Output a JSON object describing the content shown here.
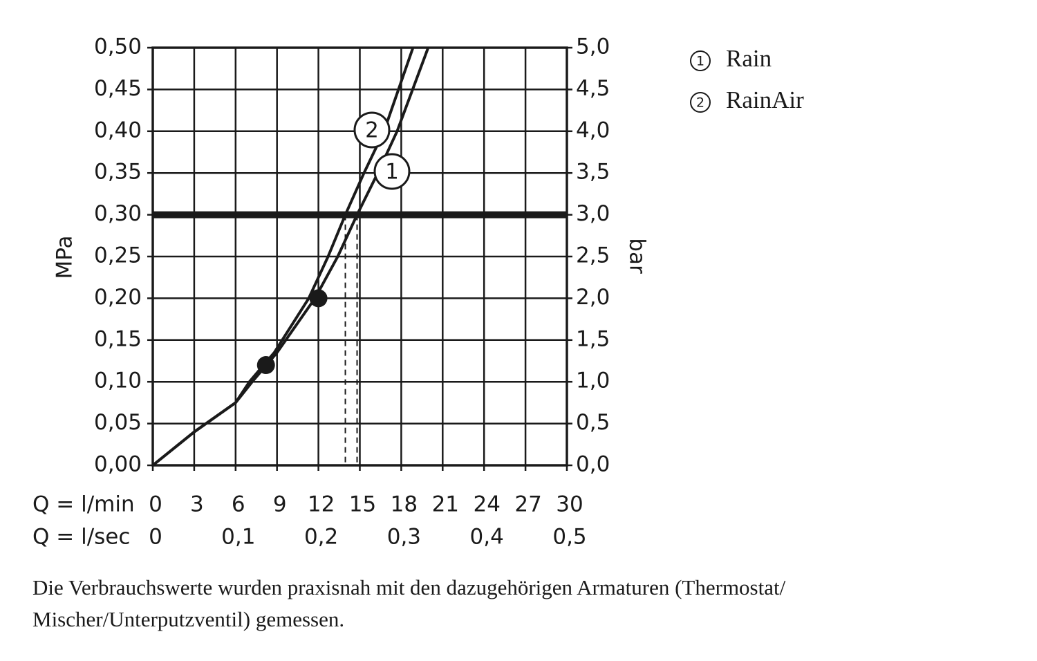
{
  "chart_data": {
    "type": "line",
    "y_label": "MPa",
    "y2_label": "bar",
    "x_label": "Q = l/min",
    "x2_label": "Q = l/sec",
    "xlim": [
      0,
      30
    ],
    "xticks": [
      0,
      3,
      6,
      9,
      12,
      15,
      18,
      21,
      24,
      27,
      30
    ],
    "x2lim": [
      0,
      0.5
    ],
    "x2ticks": [
      0,
      {
        "value": 0.1,
        "label": "0,1"
      },
      {
        "value": 0.2,
        "label": "0,2"
      },
      {
        "value": 0.3,
        "label": "0,3"
      },
      {
        "value": 0.4,
        "label": "0,4"
      },
      {
        "value": 0.5,
        "label": "0,5"
      }
    ],
    "ylim": [
      0,
      0.5
    ],
    "yticks": [
      {
        "value": 0,
        "label": "0,00"
      },
      {
        "value": 0.05,
        "label": "0,05"
      },
      {
        "value": 0.1,
        "label": "0,10"
      },
      {
        "value": 0.15,
        "label": "0,15"
      },
      {
        "value": 0.2,
        "label": "0,20"
      },
      {
        "value": 0.25,
        "label": "0,25"
      },
      {
        "value": 0.3,
        "label": "0,30"
      },
      {
        "value": 0.35,
        "label": "0,35"
      },
      {
        "value": 0.4,
        "label": "0,40"
      },
      {
        "value": 0.45,
        "label": "0,45"
      },
      {
        "value": 0.5,
        "label": "0,50"
      }
    ],
    "y2lim": [
      0,
      5
    ],
    "y2ticks": [
      {
        "value": 0,
        "label": "0,0"
      },
      {
        "value": 0.5,
        "label": "0,5"
      },
      {
        "value": 1,
        "label": "1,0"
      },
      {
        "value": 1.5,
        "label": "1,5"
      },
      {
        "value": 2,
        "label": "2,0"
      },
      {
        "value": 2.5,
        "label": "2,5"
      },
      {
        "value": 3,
        "label": "3,0"
      },
      {
        "value": 3.5,
        "label": "3,5"
      },
      {
        "value": 4,
        "label": "4,0"
      },
      {
        "value": 4.5,
        "label": "4,5"
      },
      {
        "value": 5,
        "label": "5,0"
      }
    ],
    "grid": true,
    "color": "#1a1a1a",
    "series": [
      {
        "name": "Rain",
        "marker": "1",
        "color": "#1a1a1a",
        "x": [
          0,
          3,
          6,
          7.2,
          9,
          11.75,
          13.4,
          14.8,
          16.3,
          17.7,
          19.95
        ],
        "values": [
          0,
          0.04,
          0.075,
          0.1,
          0.135,
          0.2,
          0.25,
          0.3,
          0.35,
          0.4,
          0.5
        ]
      },
      {
        "name": "RainAir",
        "marker": "2",
        "color": "#1a1a1a",
        "x": [
          0,
          3,
          6,
          7,
          8.8,
          11.3,
          12.7,
          13.95,
          15.3,
          16.75,
          18.85
        ],
        "values": [
          0,
          0.04,
          0.075,
          0.1,
          0.135,
          0.2,
          0.25,
          0.3,
          0.35,
          0.4,
          0.5
        ]
      }
    ],
    "points": {
      "x": [
        8.2,
        12
      ],
      "values": [
        0.12,
        0.2
      ]
    },
    "hline": 0.3,
    "vlines": [
      13.95,
      14.8
    ],
    "note": [
      "Die Verbrauchswerte wurden praxisnah mit den dazugehörigen Armaturen (Thermostat/",
      "Mischer/Unterputzventil) gemessen."
    ]
  }
}
